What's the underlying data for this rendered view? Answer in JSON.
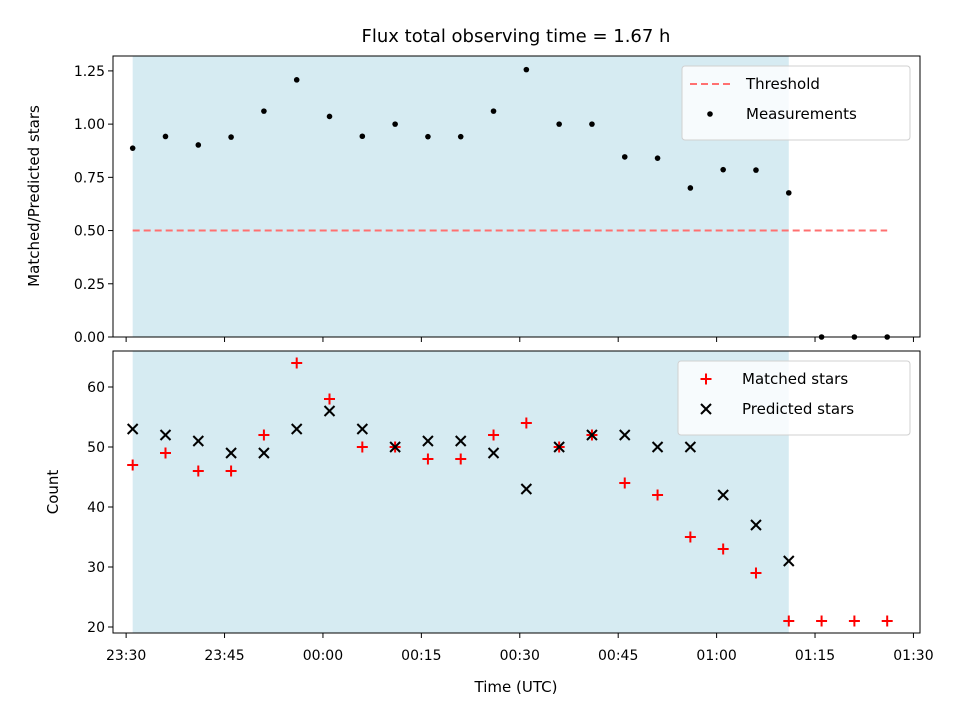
{
  "chart_data": [
    {
      "type": "scatter",
      "title": "Flux total observing time = 1.67 h",
      "ylabel": "Matched/Predicted stars",
      "xlabel": "",
      "xlim": [
        "23:28",
        "01:31"
      ],
      "ylim": [
        0,
        1.32
      ],
      "yticks": [
        0.0,
        0.25,
        0.5,
        0.75,
        1.0,
        1.25
      ],
      "ytick_labels": [
        "0.00",
        "0.25",
        "0.50",
        "0.75",
        "1.00",
        "1.25"
      ],
      "legend_position": "top-right",
      "shaded_region": {
        "x_start": "23:31",
        "x_end": "01:11",
        "color": "#add8e6"
      },
      "threshold": {
        "name": "Threshold",
        "value": 0.5,
        "x_start": "23:31",
        "x_end": "01:26",
        "color": "#ff7070",
        "style": "dashed"
      },
      "series": [
        {
          "name": "Measurements",
          "marker": "dot",
          "color": "#000000",
          "x": [
            "23:31",
            "23:36",
            "23:41",
            "23:46",
            "23:51",
            "23:56",
            "00:01",
            "00:06",
            "00:11",
            "00:16",
            "00:21",
            "00:26",
            "00:31",
            "00:36",
            "00:41",
            "00:46",
            "00:51",
            "00:56",
            "01:01",
            "01:06",
            "01:11",
            "01:16",
            "01:21",
            "01:26"
          ],
          "y": [
            0.887,
            0.942,
            0.902,
            0.939,
            1.061,
            1.208,
            1.036,
            0.943,
            1.0,
            0.941,
            0.941,
            1.061,
            1.256,
            1.0,
            1.0,
            0.846,
            0.84,
            0.7,
            0.786,
            0.784,
            0.677,
            0,
            0,
            0
          ]
        }
      ]
    },
    {
      "type": "scatter",
      "title": "",
      "ylabel": "Count",
      "xlabel": "Time (UTC)",
      "xlim": [
        "23:28",
        "01:31"
      ],
      "ylim": [
        19,
        66
      ],
      "yticks": [
        20,
        30,
        40,
        50,
        60
      ],
      "ytick_labels": [
        "20",
        "30",
        "40",
        "50",
        "60"
      ],
      "xticks": [
        "23:30",
        "23:45",
        "00:00",
        "00:15",
        "00:30",
        "00:45",
        "01:00",
        "01:15",
        "01:30"
      ],
      "xtick_labels": [
        "23:30",
        "23:45",
        "00:00",
        "00:15",
        "00:30",
        "00:45",
        "01:00",
        "01:15",
        "01:30"
      ],
      "legend_position": "top-right",
      "shaded_region": {
        "x_start": "23:31",
        "x_end": "01:11",
        "color": "#add8e6"
      },
      "series": [
        {
          "name": "Matched stars",
          "marker": "plus",
          "color": "#ff0000",
          "x": [
            "23:31",
            "23:36",
            "23:41",
            "23:46",
            "23:51",
            "23:56",
            "00:01",
            "00:06",
            "00:11",
            "00:16",
            "00:21",
            "00:26",
            "00:31",
            "00:36",
            "00:41",
            "00:46",
            "00:51",
            "00:56",
            "01:01",
            "01:06",
            "01:11",
            "01:16",
            "01:21",
            "01:26"
          ],
          "y": [
            47,
            49,
            46,
            46,
            52,
            64,
            58,
            50,
            50,
            48,
            48,
            52,
            54,
            50,
            52,
            44,
            42,
            35,
            33,
            29,
            21,
            21,
            21,
            21
          ]
        },
        {
          "name": "Predicted stars",
          "marker": "x",
          "color": "#000000",
          "x": [
            "23:31",
            "23:36",
            "23:41",
            "23:46",
            "23:51",
            "23:56",
            "00:01",
            "00:06",
            "00:11",
            "00:16",
            "00:21",
            "00:26",
            "00:31",
            "00:36",
            "00:41",
            "00:46",
            "00:51",
            "00:56",
            "01:01",
            "01:06",
            "01:11"
          ],
          "y": [
            53,
            52,
            51,
            49,
            49,
            53,
            56,
            53,
            50,
            51,
            51,
            49,
            43,
            50,
            52,
            52,
            50,
            50,
            42,
            37,
            31
          ]
        }
      ]
    }
  ]
}
